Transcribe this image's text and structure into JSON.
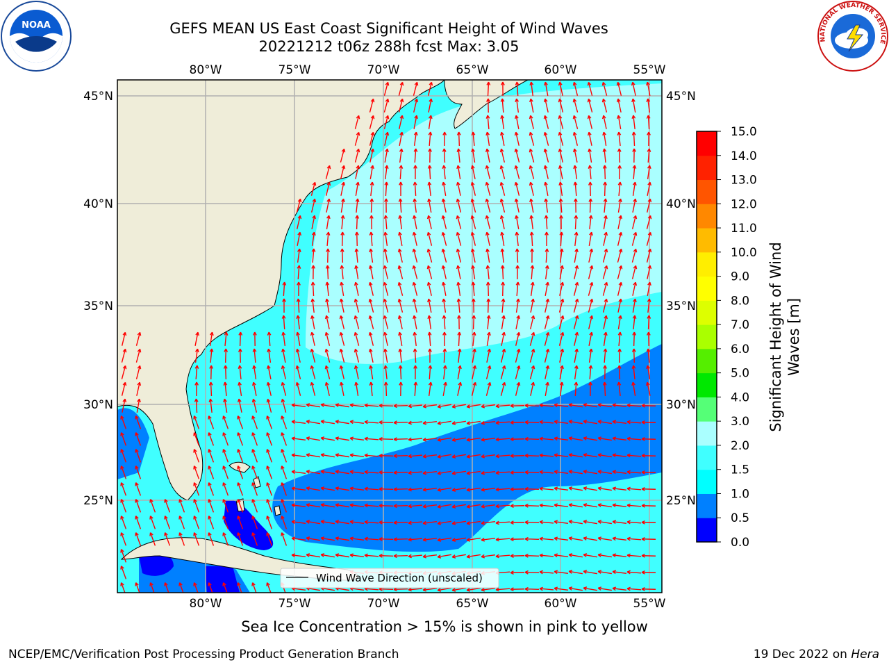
{
  "title": {
    "line1": "GEFS MEAN US East Coast Significant Height of Wind Waves",
    "line2": "20221212 t06z 288h fcst   Max: 3.05"
  },
  "map": {
    "lon_ticks": [
      "80°W",
      "75°W",
      "70°W",
      "65°W",
      "60°W",
      "55°W"
    ],
    "lat_ticks": [
      "45°N",
      "40°N",
      "35°N",
      "30°N",
      "25°N"
    ],
    "lon_range": [
      -85,
      -54.5
    ],
    "lat_range": [
      20.5,
      45.8
    ],
    "colors": {
      "land": "#efedd9",
      "grid": "#b0b0b0",
      "arrow": "#ff0000",
      "coast": "#000000"
    },
    "legend_label": "Wind Wave Direction (unscaled)"
  },
  "colorbar": {
    "label": "Significant Height of Wind Waves [m]",
    "label_line1": "Significant Height of Wind",
    "label_line2": "Waves [m]",
    "ticks": [
      "0.0",
      "0.5",
      "1.0",
      "1.5",
      "2.0",
      "3.0",
      "4.0",
      "5.0",
      "6.0",
      "7.0",
      "8.0",
      "9.0",
      "10.0",
      "11.0",
      "12.0",
      "13.0",
      "14.0",
      "15.0"
    ],
    "colors": [
      "#0000ff",
      "#0080ff",
      "#00ffff",
      "#40ffff",
      "#aaffff",
      "#55ff77",
      "#00e800",
      "#55ee00",
      "#aaff00",
      "#ddff00",
      "#ffff00",
      "#ffee00",
      "#ffbb00",
      "#ff8800",
      "#ff5500",
      "#ff2200",
      "#ff0000"
    ]
  },
  "logos": {
    "noaa": "NOAA",
    "nws": "NATIONAL WEATHER SERVICE"
  },
  "footer": {
    "note": "Sea Ice Concentration > 15% is shown in pink to yellow",
    "left": "NCEP/EMC/Verification Post Processing Product Generation Branch",
    "right_date": "19 Dec 2022 on",
    "right_host": "Hera"
  }
}
